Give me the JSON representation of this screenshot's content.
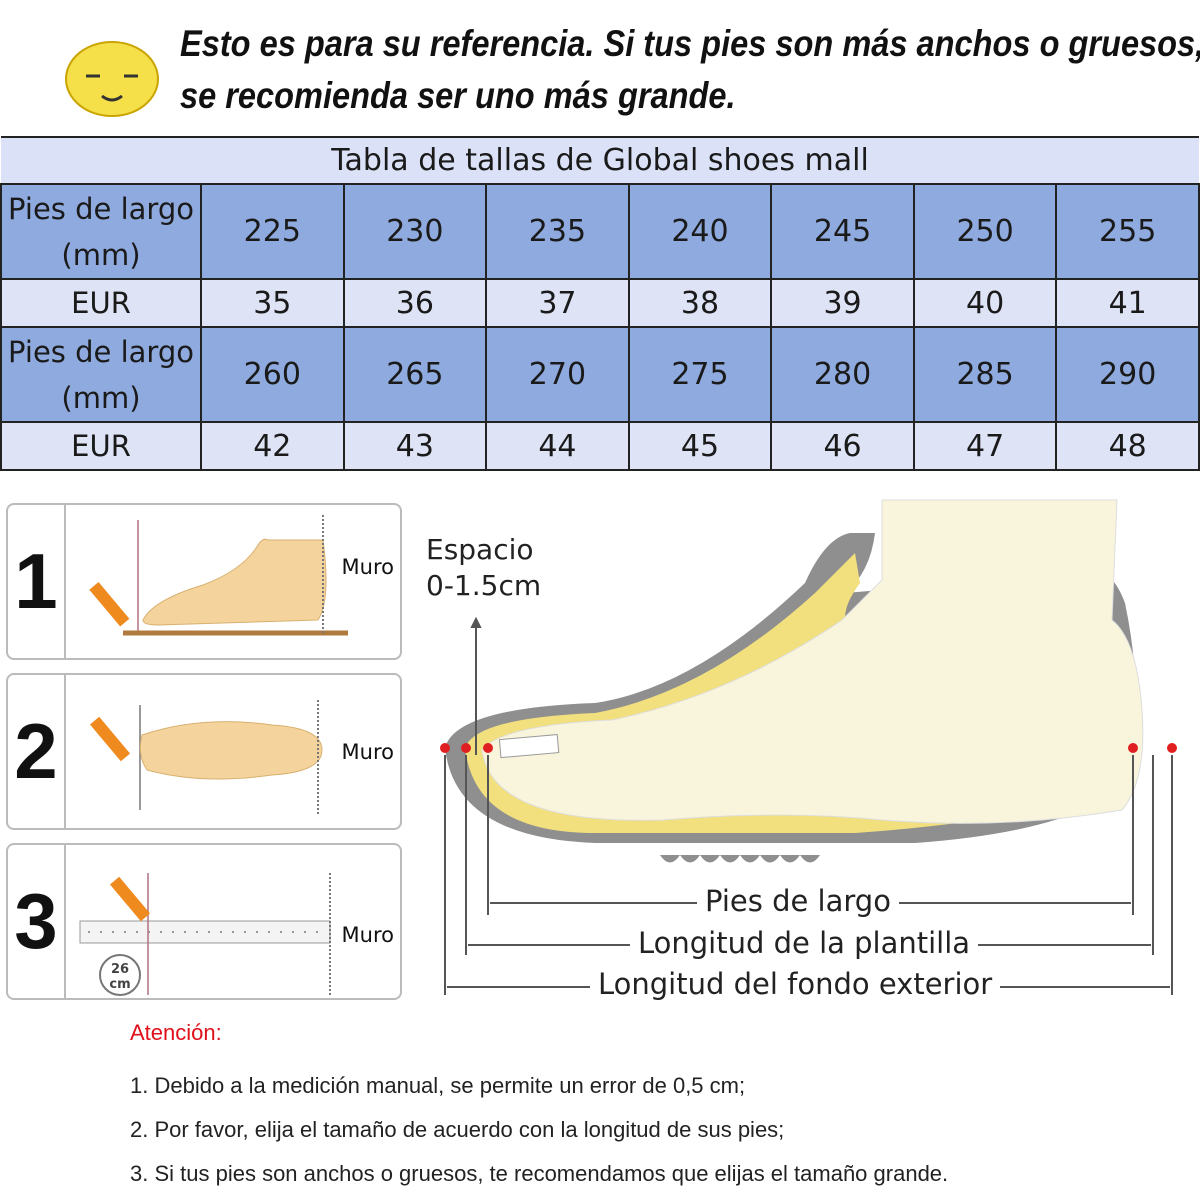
{
  "header": {
    "note_line1": "Esto es para su referencia. Si tus pies son más anchos o gruesos,",
    "note_line2": "se recomienda ser uno más grande.",
    "icon": "sleepy-smiley-icon"
  },
  "size_table": {
    "title": "Tabla de tallas de Global shoes mall",
    "length_label_1": "Pies de largo",
    "length_label_2": "(mm)",
    "eur_label": "EUR",
    "rows": [
      {
        "lengths": [
          "225",
          "230",
          "235",
          "240",
          "245",
          "250",
          "255"
        ],
        "eur": [
          "35",
          "36",
          "37",
          "38",
          "39",
          "40",
          "41"
        ]
      },
      {
        "lengths": [
          "260",
          "265",
          "270",
          "275",
          "280",
          "285",
          "290"
        ],
        "eur": [
          "42",
          "43",
          "44",
          "45",
          "46",
          "47",
          "48"
        ]
      }
    ],
    "colors": {
      "title_bg": "#dbe1f6",
      "length_bg": "#8faade",
      "eur_bg": "#dee3f6"
    }
  },
  "steps": [
    {
      "number": "1",
      "wall_label": "Muro"
    },
    {
      "number": "2",
      "wall_label": "Muro"
    },
    {
      "number": "3",
      "wall_label": "Muro",
      "ruler_badge_1": "26",
      "ruler_badge_2": "cm"
    }
  ],
  "diagram": {
    "space_label_1": "Espacio",
    "space_label_2": "0-1.5cm",
    "foot_length": "Pies de largo",
    "insole_length": "Longitud de la plantilla",
    "outsole_length": "Longitud del fondo exterior"
  },
  "attention": {
    "title": "Atención:",
    "items": [
      "1. Debido a la medición manual, se permite un error de 0,5 cm;",
      "2. Por favor, elija el tamaño de acuerdo con la longitud de sus pies;",
      "3. Si tus pies son anchos o gruesos, te recomendamos que elijas el tamaño grande."
    ],
    "color": "#e0101a"
  }
}
